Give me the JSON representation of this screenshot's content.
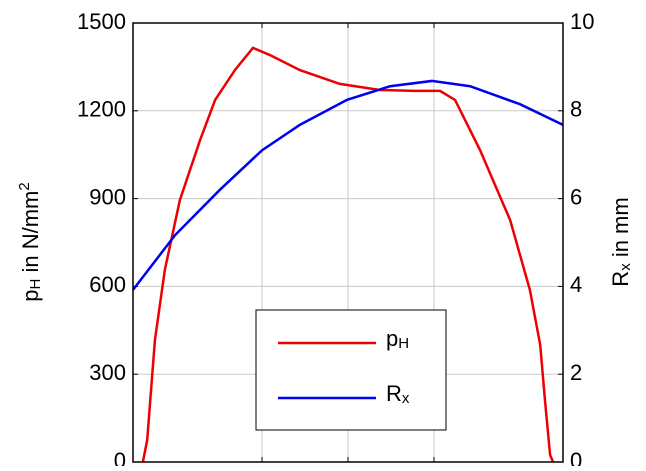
{
  "chart_data": {
    "type": "line",
    "y_label": "pH in N/mm2",
    "y2_label": "Rx in mm",
    "xlim": [
      0,
      1
    ],
    "xticks": [
      0.3,
      0.5,
      0.7
    ],
    "ylim": [
      0,
      1500
    ],
    "yticks": [
      0,
      300,
      600,
      900,
      1200,
      1500
    ],
    "y2lim": [
      0,
      10
    ],
    "y2ticks": [
      0,
      2,
      4,
      6,
      8,
      10
    ],
    "grid": true,
    "legend": "lower center",
    "series": [
      {
        "name": "pH",
        "color": "#ee0000",
        "axis": "y",
        "x": [
          0.023,
          0.033,
          0.051,
          0.074,
          0.109,
          0.156,
          0.191,
          0.237,
          0.279,
          0.319,
          0.388,
          0.481,
          0.574,
          0.656,
          0.714,
          0.749,
          0.807,
          0.877,
          0.923,
          0.947,
          0.958,
          0.97,
          0.977
        ],
        "values": [
          0,
          75,
          417,
          656,
          895,
          1100,
          1237,
          1339,
          1415,
          1390,
          1339,
          1292,
          1271,
          1268,
          1268,
          1237,
          1066,
          827,
          588,
          400,
          212,
          24,
          0
        ]
      },
      {
        "name": "Rx",
        "color": "#0000ee",
        "axis": "y2",
        "x": [
          0,
          0.098,
          0.202,
          0.3,
          0.388,
          0.498,
          0.598,
          0.695,
          0.784,
          0.9,
          1
        ],
        "values": [
          3.92,
          5.17,
          6.2,
          7.1,
          7.68,
          8.25,
          8.56,
          8.68,
          8.56,
          8.15,
          7.68
        ]
      }
    ]
  }
}
